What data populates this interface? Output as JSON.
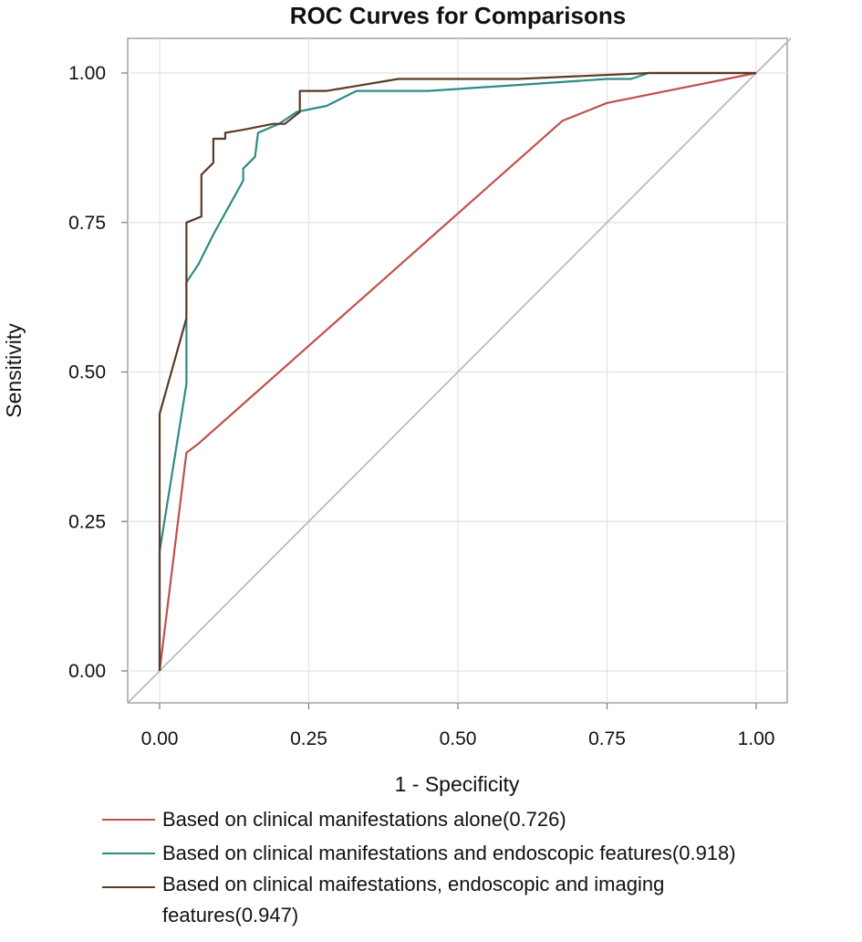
{
  "chart_data": {
    "type": "line",
    "title": "ROC Curves for Comparisons",
    "xlabel": "1 - Specificity",
    "ylabel": "Sensitivity",
    "xlim": [
      0,
      1
    ],
    "ylim": [
      0,
      1
    ],
    "xticks": [
      "0.00",
      "0.25",
      "0.50",
      "0.75",
      "1.00"
    ],
    "yticks": [
      "0.00",
      "0.25",
      "0.50",
      "0.75",
      "1.00"
    ],
    "grid": true,
    "legend_position": "bottom",
    "reference_line": {
      "x": [
        0,
        1
      ],
      "y": [
        0,
        1
      ],
      "color": "#b5b5b5"
    },
    "series": [
      {
        "name": "Based on clinical manifestations alone(0.726)",
        "color": "#c0504d",
        "x": [
          0,
          0.045,
          0.065,
          0.675,
          0.75,
          1.0
        ],
        "y": [
          0,
          0.365,
          0.38,
          0.92,
          0.95,
          1.0
        ]
      },
      {
        "name": "Based on clinical manifestations and endoscopic features(0.918)",
        "color": "#2e8b84",
        "x": [
          0,
          0.0,
          0.045,
          0.045,
          0.065,
          0.09,
          0.14,
          0.14,
          0.16,
          0.165,
          0.2,
          0.23,
          0.28,
          0.33,
          0.45,
          0.6,
          0.75,
          0.79,
          0.82,
          1.0
        ],
        "y": [
          0,
          0.2,
          0.48,
          0.65,
          0.68,
          0.73,
          0.82,
          0.84,
          0.86,
          0.9,
          0.915,
          0.935,
          0.945,
          0.97,
          0.97,
          0.98,
          0.99,
          0.99,
          1.0,
          1.0
        ]
      },
      {
        "name": "Based on clinical maifestations, endoscopic and imaging features(0.947)",
        "color": "#5b3a25",
        "x": [
          0,
          0.0,
          0.045,
          0.045,
          0.07,
          0.07,
          0.09,
          0.09,
          0.11,
          0.11,
          0.14,
          0.19,
          0.21,
          0.235,
          0.235,
          0.28,
          0.34,
          0.4,
          0.6,
          0.82,
          1.0
        ],
        "y": [
          0,
          0.43,
          0.59,
          0.75,
          0.76,
          0.83,
          0.85,
          0.89,
          0.89,
          0.9,
          0.905,
          0.915,
          0.915,
          0.935,
          0.97,
          0.97,
          0.98,
          0.99,
          0.99,
          1.0,
          1.0
        ]
      }
    ]
  }
}
